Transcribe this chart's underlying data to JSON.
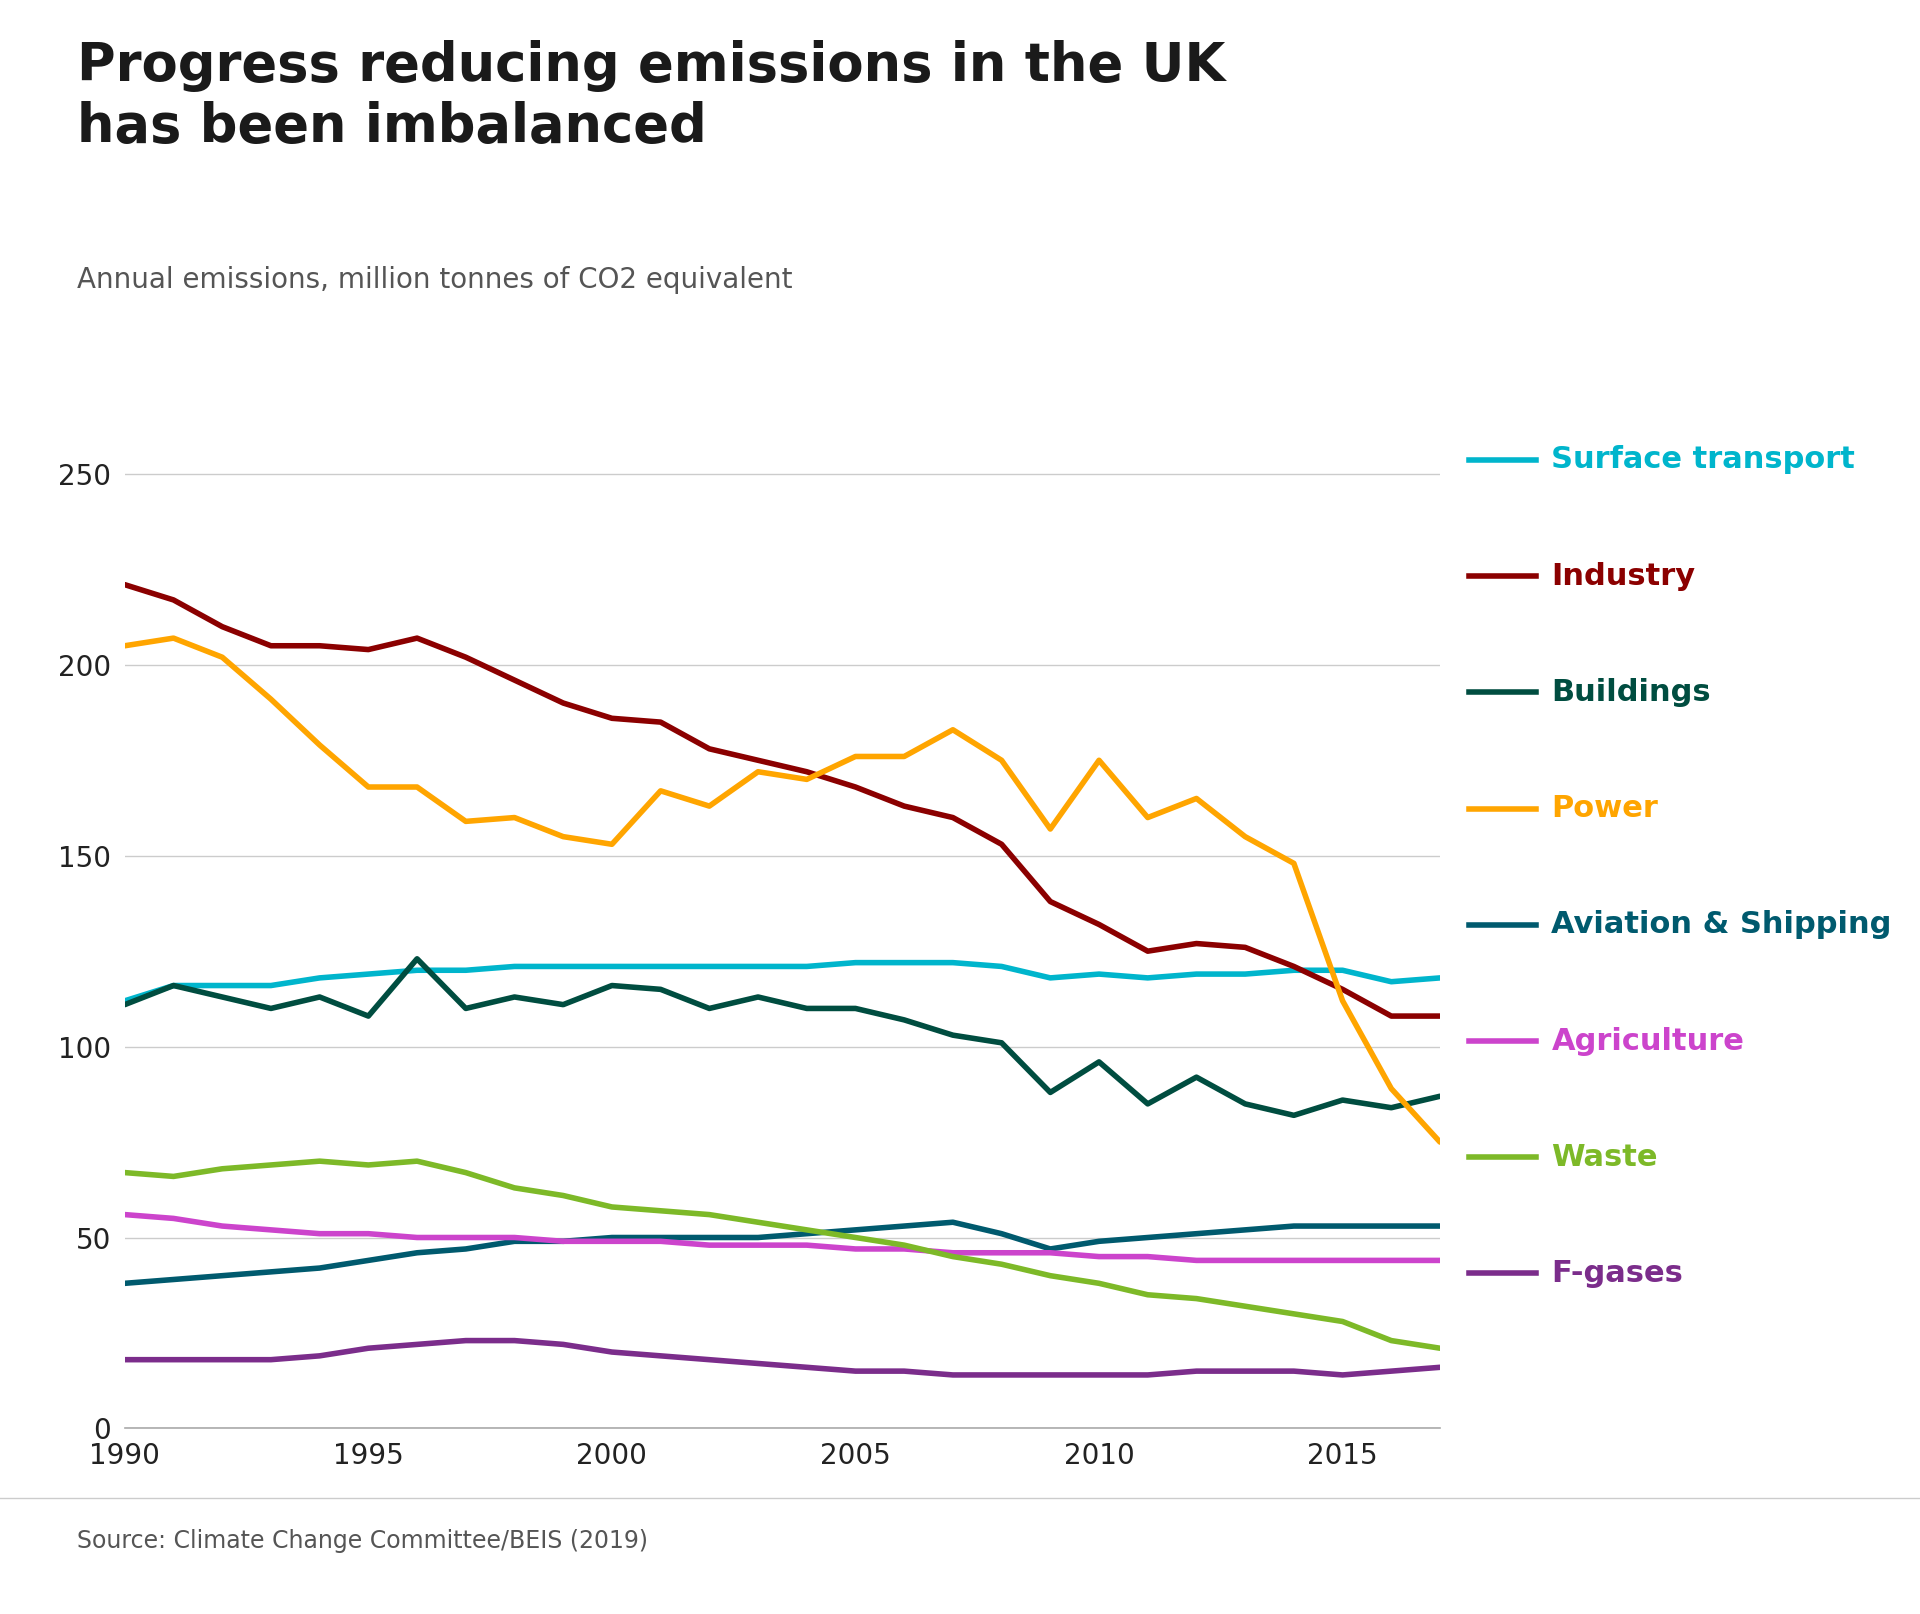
{
  "title": "Progress reducing emissions in the UK\nhas been imbalanced",
  "subtitle": "Annual emissions, million tonnes of CO2 equivalent",
  "source": "Source: Climate Change Committee/BEIS (2019)",
  "years": [
    1990,
    1991,
    1992,
    1993,
    1994,
    1995,
    1996,
    1997,
    1998,
    1999,
    2000,
    2001,
    2002,
    2003,
    2004,
    2005,
    2006,
    2007,
    2008,
    2009,
    2010,
    2011,
    2012,
    2013,
    2014,
    2015,
    2016,
    2017
  ],
  "series": {
    "Surface transport": {
      "color": "#00B5CC",
      "data": [
        112,
        116,
        116,
        116,
        118,
        119,
        120,
        120,
        121,
        121,
        121,
        121,
        121,
        121,
        121,
        122,
        122,
        122,
        121,
        118,
        119,
        118,
        119,
        119,
        120,
        120,
        117,
        118
      ]
    },
    "Industry": {
      "color": "#8B0000",
      "data": [
        221,
        217,
        210,
        205,
        205,
        204,
        207,
        202,
        196,
        190,
        186,
        185,
        178,
        175,
        172,
        168,
        163,
        160,
        153,
        138,
        132,
        125,
        127,
        126,
        121,
        115,
        108,
        108
      ]
    },
    "Buildings": {
      "color": "#004D40",
      "data": [
        111,
        116,
        113,
        110,
        113,
        108,
        123,
        110,
        113,
        111,
        116,
        115,
        110,
        113,
        110,
        110,
        107,
        103,
        101,
        88,
        96,
        85,
        92,
        85,
        82,
        86,
        84,
        87
      ]
    },
    "Power": {
      "color": "#FFA500",
      "data": [
        205,
        207,
        202,
        191,
        179,
        168,
        168,
        159,
        160,
        155,
        153,
        167,
        163,
        172,
        170,
        176,
        176,
        183,
        175,
        157,
        175,
        160,
        165,
        155,
        148,
        112,
        89,
        75
      ]
    },
    "Aviation & Shipping": {
      "color": "#005A6E",
      "data": [
        38,
        39,
        40,
        41,
        42,
        44,
        46,
        47,
        49,
        49,
        50,
        50,
        50,
        50,
        51,
        52,
        53,
        54,
        51,
        47,
        49,
        50,
        51,
        52,
        53,
        53,
        53,
        53
      ]
    },
    "Agriculture": {
      "color": "#CC44CC",
      "data": [
        56,
        55,
        53,
        52,
        51,
        51,
        50,
        50,
        50,
        49,
        49,
        49,
        48,
        48,
        48,
        47,
        47,
        46,
        46,
        46,
        45,
        45,
        44,
        44,
        44,
        44,
        44,
        44
      ]
    },
    "Waste": {
      "color": "#7DB928",
      "data": [
        67,
        66,
        68,
        69,
        70,
        69,
        70,
        67,
        63,
        61,
        58,
        57,
        56,
        54,
        52,
        50,
        48,
        45,
        43,
        40,
        38,
        35,
        34,
        32,
        30,
        28,
        23,
        21
      ]
    },
    "F-gases": {
      "color": "#7B2D8B",
      "data": [
        18,
        18,
        18,
        18,
        19,
        21,
        22,
        23,
        23,
        22,
        20,
        19,
        18,
        17,
        16,
        15,
        15,
        14,
        14,
        14,
        14,
        14,
        15,
        15,
        15,
        14,
        15,
        16
      ]
    }
  },
  "ylim": [
    0,
    260
  ],
  "yticks": [
    0,
    50,
    100,
    150,
    200,
    250
  ],
  "xlim": [
    1990,
    2017
  ],
  "xticks": [
    1990,
    1995,
    2000,
    2005,
    2010,
    2015
  ],
  "legend_order": [
    "Surface transport",
    "Industry",
    "Buildings",
    "Power",
    "Aviation & Shipping",
    "Agriculture",
    "Waste",
    "F-gases"
  ],
  "background_color": "#FFFFFF",
  "grid_color": "#CCCCCC",
  "title_fontsize": 38,
  "subtitle_fontsize": 20,
  "axis_fontsize": 20,
  "legend_fontsize": 22,
  "source_fontsize": 17,
  "line_width": 4.0
}
